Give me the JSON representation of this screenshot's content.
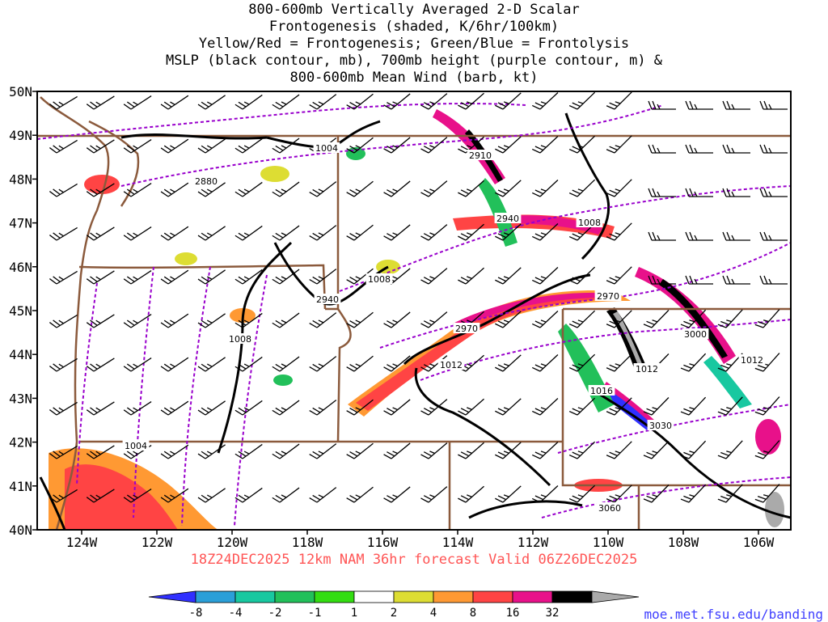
{
  "title_lines": [
    "800-600mb Vertically Averaged 2-D Scalar",
    "Frontogenesis (shaded, K/6hr/100km)",
    "Yellow/Red = Frontogenesis;  Green/Blue = Frontolysis",
    "MSLP (black contour, mb), 700mb height (purple contour, m) &",
    "800-600mb Mean Wind (barb, kt)"
  ],
  "latitude_labels": [
    "50N",
    "49N",
    "48N",
    "47N",
    "46N",
    "45N",
    "44N",
    "43N",
    "42N",
    "41N",
    "40N"
  ],
  "longitude_labels": [
    "124W",
    "122W",
    "120W",
    "118W",
    "116W",
    "114W",
    "112W",
    "110W",
    "108W",
    "106W"
  ],
  "mslp_labels": [
    "1004",
    "1008",
    "1008",
    "1008",
    "1012",
    "1016",
    "1012",
    "1012",
    "1004"
  ],
  "height_labels": [
    "2880",
    "2910",
    "2940",
    "2940",
    "2970",
    "2970",
    "3000",
    "3030",
    "3060"
  ],
  "forecast_line": "18Z24DEC2025 12km NAM 36hr forecast Valid 06Z26DEC2025",
  "colorbar": {
    "ticks": [
      "-8",
      "-4",
      "-2",
      "-1",
      "1",
      "2",
      "4",
      "8",
      "16",
      "32"
    ],
    "colors": [
      "#3030ff",
      "#2a9fd8",
      "#18c8a0",
      "#22c05a",
      "#33dd11",
      "#ffffff",
      "#dddd33",
      "#ff9933",
      "#ff4444",
      "#e8118a",
      "#000000",
      "#aaaaaa"
    ]
  },
  "source_url": "moe.met.fsu.edu/banding",
  "colors": {
    "state_borders": "#8b5a3c",
    "mslp": "#000000",
    "height": "#9900cc"
  }
}
